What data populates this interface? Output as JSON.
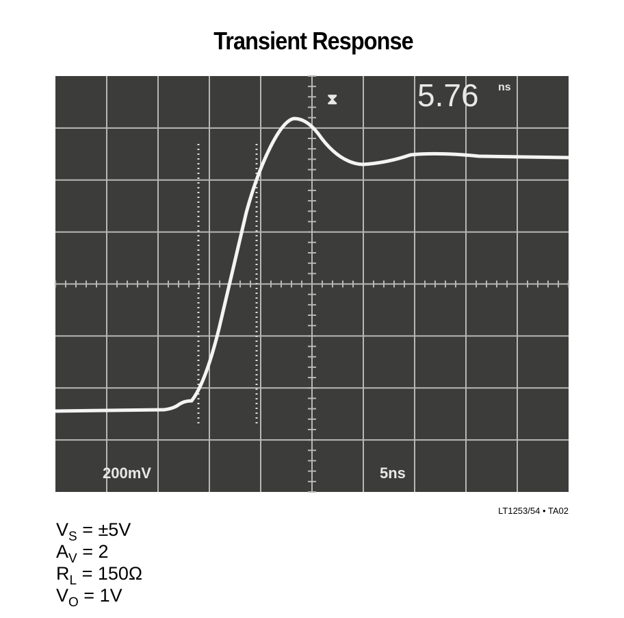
{
  "header": {
    "title": "Transient Response"
  },
  "scope": {
    "readout_value": "5.76",
    "readout_unit": "ns",
    "vertical_scale": "200mV",
    "horizontal_scale": "5ns"
  },
  "figure_id": "LT1253/54 • TA02",
  "conditions": [
    {
      "symbol": "V",
      "subscript": "S",
      "text": " = ±5V"
    },
    {
      "symbol": "A",
      "subscript": "V",
      "text": " = 2"
    },
    {
      "symbol": "R",
      "subscript": "L",
      "text": " = 150Ω"
    },
    {
      "symbol": "V",
      "subscript": "O",
      "text": " = 1V"
    }
  ]
}
